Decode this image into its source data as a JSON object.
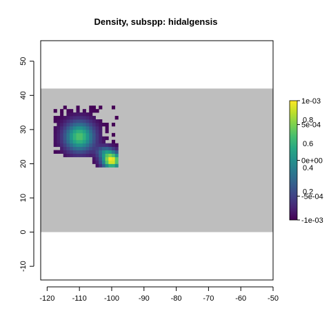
{
  "chart_data": {
    "type": "heatmap",
    "title": "Density, subspp: hidalgensis",
    "xlabel": "",
    "ylabel": "",
    "xlim": [
      -122,
      -50
    ],
    "ylim": [
      -14,
      56
    ],
    "x_ticks": [
      -120,
      -110,
      -100,
      -90,
      -80,
      -70,
      -60,
      -50
    ],
    "x_tick_labels": [
      "-120",
      "-110",
      "-100",
      "-90",
      "-80",
      "-70",
      "-60",
      "-50"
    ],
    "y_ticks": [
      -10,
      0,
      10,
      20,
      30,
      40,
      50
    ],
    "y_tick_labels": [
      "-10",
      "0",
      "10",
      "20",
      "30",
      "40",
      "50"
    ],
    "background_region": {
      "xmin": -122,
      "xmax": -50,
      "ymin": 0,
      "ymax": 42,
      "color": "#bebebe"
    },
    "colormap": "viridis",
    "density_peaks": [
      {
        "x": -110,
        "y": 28,
        "sx": 3.2,
        "sy": 3.0,
        "amp": 0.45
      },
      {
        "x": -100,
        "y": 21,
        "sx": 2.0,
        "sy": 1.6,
        "amp": 0.62
      },
      {
        "x": -102,
        "y": 23.5,
        "sx": 1.8,
        "sy": 1.2,
        "amp": 0.22
      }
    ],
    "density_extent": [
      {
        "xmin": -118,
        "xmax": -97.5,
        "ymin": 22,
        "ymax": 37
      },
      {
        "xmin": -106,
        "xmax": -97.5,
        "ymin": 19,
        "ymax": 25
      }
    ],
    "legend": {
      "placement": "right",
      "outer_ticks": [
        {
          "value": 1,
          "label": "1e-03"
        },
        {
          "value": 0.8,
          "label": "5e-04"
        },
        {
          "value": 0.5,
          "label": "0e+00"
        },
        {
          "value": 0.2,
          "label": "-5e-04"
        },
        {
          "value": 0,
          "label": "-1e-03"
        }
      ],
      "inner_ticks": [
        {
          "value": 0.8,
          "label": "0.8"
        },
        {
          "value": 0.6,
          "label": "0.6"
        },
        {
          "value": 0.4,
          "label": "0.4"
        },
        {
          "value": 0.2,
          "label": "0.2"
        }
      ]
    },
    "grid": false
  }
}
